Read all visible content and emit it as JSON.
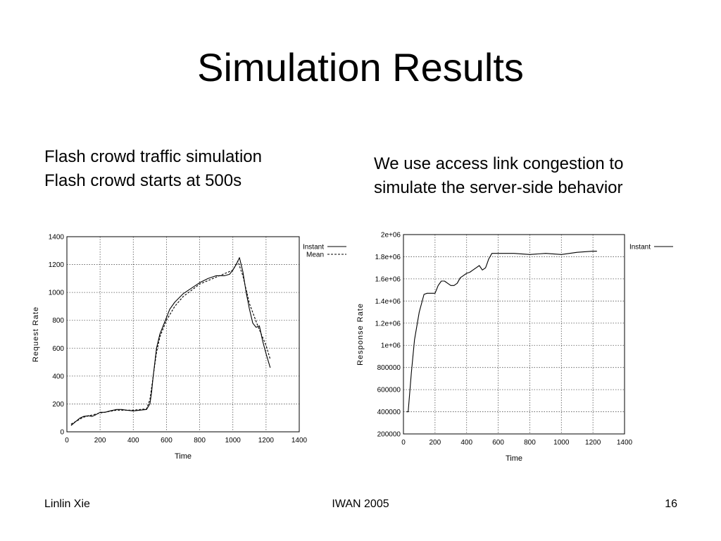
{
  "slide": {
    "title": "Simulation Results",
    "left_caption": [
      "Flash crowd traffic simulation",
      "Flash crowd starts at 500s"
    ],
    "right_caption": [
      "We use access link congestion to",
      "simulate the server-side behavior"
    ],
    "footer": {
      "left": "Linlin Xie",
      "center": "IWAN 2005",
      "right": "16"
    }
  },
  "chart_data": [
    {
      "type": "line",
      "title": "",
      "xlabel": "Time",
      "ylabel": "Request Rate",
      "xlim": [
        0,
        1400
      ],
      "ylim": [
        0,
        1400
      ],
      "xticks": [
        0,
        200,
        400,
        600,
        800,
        1000,
        1200,
        1400
      ],
      "yticks": [
        0,
        200,
        400,
        600,
        800,
        1000,
        1200,
        1400
      ],
      "grid": true,
      "legend": "top-right",
      "series": [
        {
          "name": "Instant",
          "style": "solid",
          "x": [
            25,
            50,
            80,
            100,
            130,
            150,
            170,
            200,
            230,
            260,
            300,
            330,
            360,
            400,
            440,
            480,
            500,
            510,
            520,
            540,
            560,
            580,
            600,
            620,
            650,
            700,
            750,
            800,
            850,
            900,
            950,
            980,
            1000,
            1020,
            1040,
            1060,
            1080,
            1100,
            1120,
            1140,
            1160,
            1180,
            1200,
            1225
          ],
          "y": [
            45,
            70,
            100,
            110,
            115,
            110,
            120,
            140,
            140,
            150,
            160,
            160,
            155,
            150,
            155,
            160,
            200,
            280,
            400,
            600,
            700,
            760,
            820,
            880,
            930,
            990,
            1030,
            1070,
            1100,
            1120,
            1120,
            1130,
            1160,
            1200,
            1250,
            1150,
            1000,
            880,
            780,
            750,
            760,
            650,
            560,
            460
          ]
        },
        {
          "name": "Mean",
          "style": "dashed",
          "x": [
            25,
            100,
            200,
            300,
            400,
            480,
            500,
            520,
            540,
            560,
            600,
            650,
            700,
            800,
            900,
            1000,
            1030,
            1060,
            1100,
            1150,
            1200,
            1225
          ],
          "y": [
            55,
            105,
            135,
            155,
            155,
            165,
            230,
            400,
            570,
            680,
            800,
            900,
            970,
            1060,
            1110,
            1160,
            1225,
            1120,
            920,
            760,
            620,
            520
          ]
        }
      ]
    },
    {
      "type": "line",
      "title": "",
      "xlabel": "Time",
      "ylabel": "Response Rate",
      "xlim": [
        0,
        1400
      ],
      "ylim": [
        200000,
        2000000
      ],
      "xticks": [
        0,
        200,
        400,
        600,
        800,
        1000,
        1200,
        1400
      ],
      "yticks": [
        200000,
        400000,
        600000,
        800000,
        1000000,
        1200000,
        1400000,
        1600000,
        1800000,
        2000000
      ],
      "ytick_labels": [
        "200000",
        "400000",
        "600000",
        "800000",
        "1e+06",
        "1.2e+06",
        "1.4e+06",
        "1.6e+06",
        "1.8e+06",
        "2e+06"
      ],
      "grid": true,
      "legend": "top-right",
      "series": [
        {
          "name": "Instant",
          "style": "solid",
          "x": [
            20,
            30,
            50,
            70,
            100,
            130,
            150,
            160,
            180,
            200,
            220,
            240,
            260,
            280,
            300,
            320,
            340,
            360,
            380,
            400,
            420,
            440,
            460,
            480,
            500,
            520,
            530,
            540,
            560,
            600,
            700,
            800,
            900,
            1000,
            1100,
            1200,
            1225
          ],
          "y": [
            400000,
            400000,
            750000,
            1050000,
            1300000,
            1460000,
            1470000,
            1470000,
            1470000,
            1470000,
            1540000,
            1580000,
            1580000,
            1560000,
            1540000,
            1540000,
            1560000,
            1610000,
            1630000,
            1650000,
            1660000,
            1680000,
            1700000,
            1720000,
            1680000,
            1700000,
            1740000,
            1780000,
            1830000,
            1830000,
            1830000,
            1820000,
            1830000,
            1820000,
            1840000,
            1850000,
            1850000
          ]
        }
      ]
    }
  ]
}
